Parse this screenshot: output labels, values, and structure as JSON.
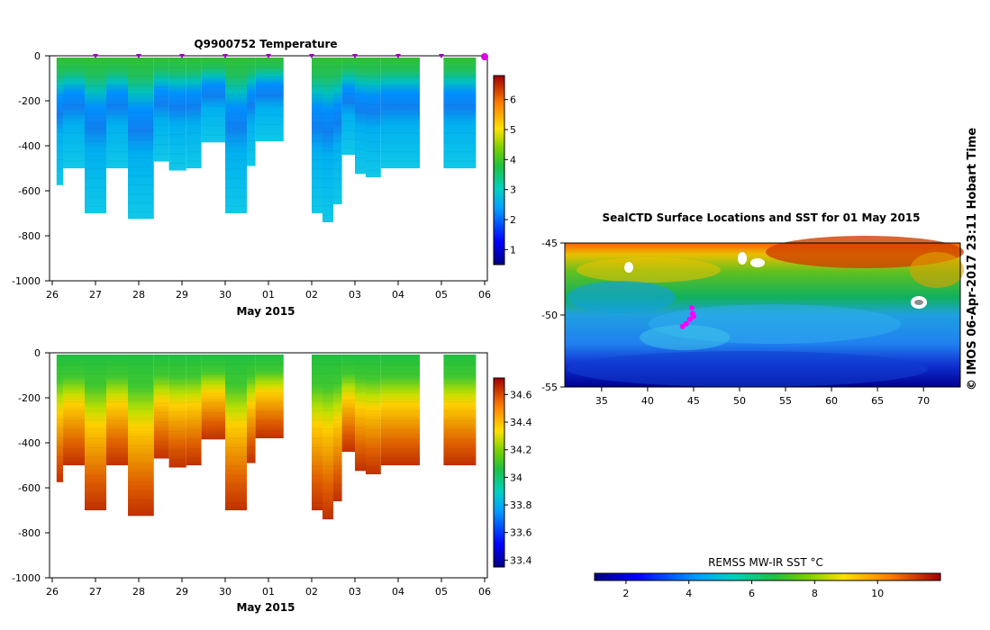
{
  "chart_data": [
    {
      "type": "heatmap",
      "name": "temperature-section",
      "title": "Q9900752  Temperature",
      "xlabel": "May 2015",
      "ylabel": "",
      "x_tick_labels": [
        "26",
        "27",
        "28",
        "29",
        "30",
        "01",
        "02",
        "03",
        "04",
        "05",
        "06"
      ],
      "x_range_days": [
        0,
        10
      ],
      "ylim": [
        -1000,
        0
      ],
      "y_ticks": [
        0,
        -200,
        -400,
        -600,
        -800,
        -1000
      ],
      "colorbar": {
        "min": 0.5,
        "max": 6.8,
        "ticks": [
          1,
          2,
          3,
          4,
          5,
          6
        ]
      },
      "profile_markers_day": [
        1,
        2,
        3,
        4,
        5,
        6,
        7,
        8,
        9,
        10
      ],
      "profiles": [
        {
          "start": 0.1,
          "end": 0.25,
          "depth": 575
        },
        {
          "start": 0.25,
          "end": 0.75,
          "depth": 500
        },
        {
          "start": 0.75,
          "end": 1.25,
          "depth": 700
        },
        {
          "start": 1.25,
          "end": 1.75,
          "depth": 500
        },
        {
          "start": 1.75,
          "end": 2.35,
          "depth": 725
        },
        {
          "start": 2.35,
          "end": 2.7,
          "depth": 470
        },
        {
          "start": 2.7,
          "end": 3.1,
          "depth": 510
        },
        {
          "start": 3.1,
          "end": 3.45,
          "depth": 500
        },
        {
          "start": 3.45,
          "end": 4.0,
          "depth": 385
        },
        {
          "start": 4.0,
          "end": 4.5,
          "depth": 700
        },
        {
          "start": 4.5,
          "end": 4.7,
          "depth": 490
        },
        {
          "start": 4.7,
          "end": 5.35,
          "depth": 380
        },
        {
          "start": 6.0,
          "end": 6.25,
          "depth": 700
        },
        {
          "start": 6.25,
          "end": 6.5,
          "depth": 740
        },
        {
          "start": 6.5,
          "end": 6.7,
          "depth": 660
        },
        {
          "start": 6.7,
          "end": 7.0,
          "depth": 440
        },
        {
          "start": 7.0,
          "end": 7.25,
          "depth": 525
        },
        {
          "start": 7.25,
          "end": 7.6,
          "depth": 540
        },
        {
          "start": 7.6,
          "end": 8.0,
          "depth": 500
        },
        {
          "start": 8.0,
          "end": 8.5,
          "depth": 500
        },
        {
          "start": 9.05,
          "end": 9.5,
          "depth": 500
        },
        {
          "start": 9.5,
          "end": 9.8,
          "depth": 500
        }
      ],
      "max_depth_by_profile_shape": "deep water cold core near 200-350 m, warm surface layer"
    },
    {
      "type": "heatmap",
      "name": "salinity-section",
      "title": "",
      "xlabel": "May 2015",
      "x_tick_labels": [
        "26",
        "27",
        "28",
        "29",
        "30",
        "01",
        "02",
        "03",
        "04",
        "05",
        "06"
      ],
      "x_range_days": [
        0,
        10
      ],
      "ylim": [
        -1000,
        0
      ],
      "y_ticks": [
        0,
        -200,
        -400,
        -600,
        -800,
        -1000
      ],
      "colorbar": {
        "min": 33.35,
        "max": 34.72,
        "ticks": [
          33.4,
          33.6,
          33.8,
          34,
          34.2,
          34.4,
          34.6
        ]
      }
    },
    {
      "type": "heatmap",
      "name": "sst-map",
      "title": "SealCTD Surface Locations and SST for 01 May 2015",
      "lon_range": [
        31,
        74
      ],
      "lat_range": [
        -55,
        -45
      ],
      "lon_ticks": [
        35,
        40,
        45,
        50,
        55,
        60,
        65,
        70
      ],
      "lat_ticks": [
        -45,
        -50,
        -55
      ],
      "colorbar": {
        "label": "REMSS MW-IR SST °C",
        "min": 1,
        "max": 12,
        "ticks": [
          2,
          4,
          6,
          8,
          10
        ]
      },
      "ctd_locations": [
        {
          "lon": 44.8,
          "lat": -49.5
        },
        {
          "lon": 44.9,
          "lat": -49.9
        },
        {
          "lon": 44.6,
          "lat": -50.3
        },
        {
          "lon": 44.2,
          "lat": -50.6
        },
        {
          "lon": 43.8,
          "lat": -50.8
        },
        {
          "lon": 45.0,
          "lat": -50.1
        }
      ]
    }
  ],
  "side_label": "© IMOS 06-Apr-2017 23:11 Hobart Time"
}
